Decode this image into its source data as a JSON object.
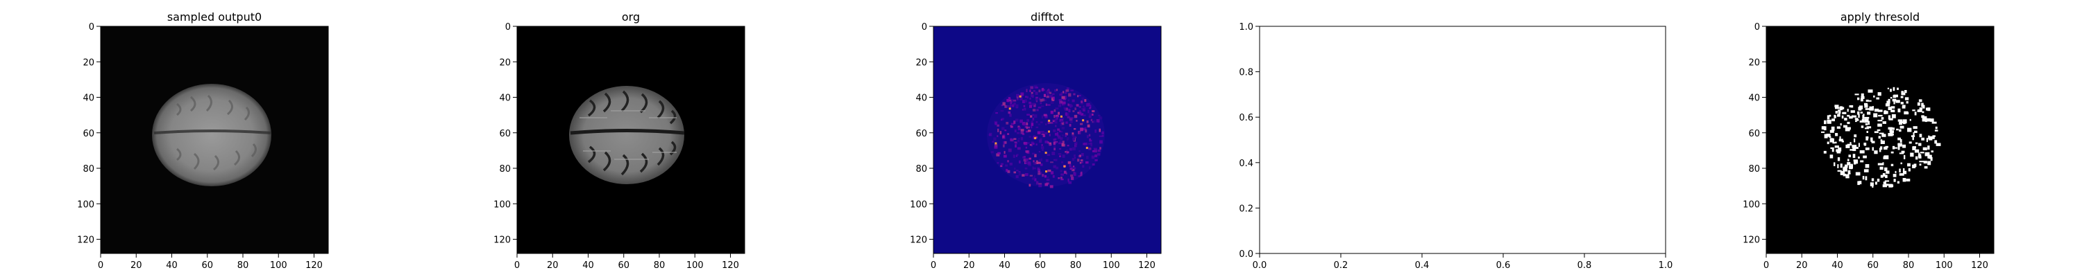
{
  "figure": {
    "background": "#ffffff"
  },
  "chart_data": [
    {
      "type": "image",
      "title": "sampled output0",
      "colormap": "gray",
      "content": "blurred grayscale brain MRI axial slice",
      "xlim": [
        0,
        128
      ],
      "ylim": [
        128,
        0
      ],
      "xticks": [
        0,
        20,
        40,
        60,
        80,
        100,
        120
      ],
      "yticks": [
        0,
        20,
        40,
        60,
        80,
        100,
        120
      ],
      "xlabel": "",
      "ylabel": ""
    },
    {
      "type": "image",
      "title": "org",
      "colormap": "gray",
      "content": "original grayscale brain MRI axial slice",
      "xlim": [
        0,
        128
      ],
      "ylim": [
        128,
        0
      ],
      "xticks": [
        0,
        20,
        40,
        60,
        80,
        100,
        120
      ],
      "yticks": [
        0,
        20,
        40,
        60,
        80,
        100,
        120
      ],
      "xlabel": "",
      "ylabel": ""
    },
    {
      "type": "heatmap",
      "title": "difftot",
      "colormap": "plasma",
      "content": "difference map, dark blue background with scattered purple/magenta speckles over the brain region",
      "xlim": [
        0,
        128
      ],
      "ylim": [
        128,
        0
      ],
      "xticks": [
        0,
        20,
        40,
        60,
        80,
        100,
        120
      ],
      "yticks": [
        0,
        20,
        40,
        60,
        80,
        100,
        120
      ],
      "xlabel": "",
      "ylabel": ""
    },
    {
      "type": "empty",
      "title": "",
      "xlim": [
        0.0,
        1.0
      ],
      "ylim": [
        0.0,
        1.0
      ],
      "xticks": [
        "0.0",
        "0.2",
        "0.4",
        "0.6",
        "0.8",
        "1.0"
      ],
      "yticks": [
        "0.0",
        "0.2",
        "0.4",
        "0.6",
        "0.8",
        "1.0"
      ],
      "xlabel": "",
      "ylabel": ""
    },
    {
      "type": "image",
      "title": "apply thresold",
      "colormap": "binary",
      "content": "thresholded binary mask, white speckles within brain outline on black",
      "xlim": [
        0,
        128
      ],
      "ylim": [
        128,
        0
      ],
      "xticks": [
        0,
        20,
        40,
        60,
        80,
        100,
        120
      ],
      "yticks": [
        0,
        20,
        40,
        60,
        80,
        100,
        120
      ],
      "xlabel": "",
      "ylabel": ""
    }
  ]
}
